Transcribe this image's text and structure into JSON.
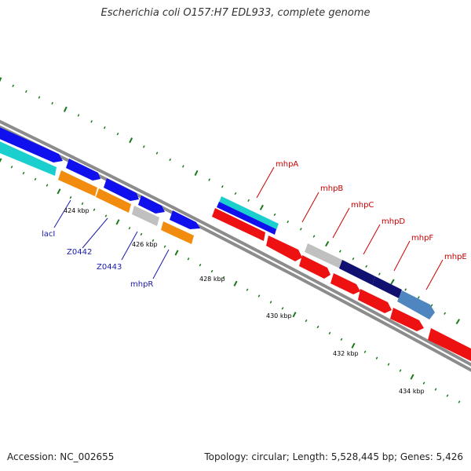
{
  "title": "Escherichia coli O157:H7 EDL933, complete genome",
  "footer": {
    "accession": "Accession: NC_002655",
    "summary": "Topology: circular; Length: 5,528,445 bp; Genes: 5,426"
  },
  "colors": {
    "backbone": "#8c8c8c",
    "tick": "#1a7a1a",
    "blue": "#1010ee",
    "navy": "#101070",
    "cyan": "#1ccfcf",
    "orange": "#f28c0f",
    "grey": "#c0c0c0",
    "red": "#ee1111",
    "steel": "#4f86c0",
    "label_blue": "#1a1aaa",
    "label_red": "#cc0000"
  },
  "scale_labels": [
    "424 kbp",
    "426 kbp",
    "428 kbp",
    "430 kbp",
    "432 kbp",
    "434 kbp"
  ],
  "gene_labels_left": [
    "lacI",
    "Z0442",
    "Z0443",
    "mhpR"
  ],
  "gene_labels_right": [
    "mhpA",
    "mhpB",
    "mhpC",
    "mhpD",
    "mhpF",
    "mhpE"
  ]
}
